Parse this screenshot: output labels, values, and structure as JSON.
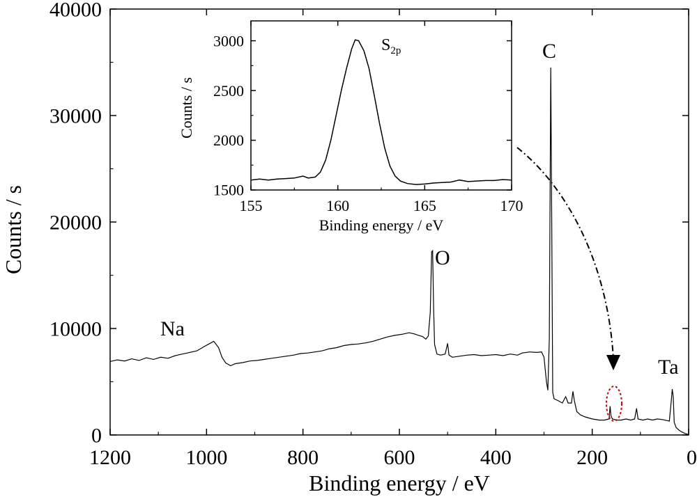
{
  "chart_data": [
    {
      "type": "line",
      "xlabel": "Binding energy / eV",
      "ylabel": "Counts / s",
      "xlim": [
        1200,
        0
      ],
      "ylim": [
        0,
        40000
      ],
      "x_reversed": true,
      "xticks": [
        1200,
        1000,
        800,
        600,
        400,
        200,
        0
      ],
      "yticks": [
        0,
        10000,
        20000,
        30000,
        40000
      ],
      "line_color": "#000000",
      "series": [
        {
          "points": [
            [
              1200,
              6900
            ],
            [
              1185,
              7050
            ],
            [
              1170,
              6950
            ],
            [
              1155,
              7150
            ],
            [
              1140,
              7000
            ],
            [
              1125,
              7250
            ],
            [
              1110,
              7100
            ],
            [
              1095,
              7300
            ],
            [
              1080,
              7200
            ],
            [
              1065,
              7450
            ],
            [
              1050,
              7600
            ],
            [
              1035,
              7750
            ],
            [
              1020,
              7900
            ],
            [
              1005,
              8300
            ],
            [
              995,
              8550
            ],
            [
              985,
              8800
            ],
            [
              975,
              8200
            ],
            [
              968,
              7300
            ],
            [
              960,
              6750
            ],
            [
              950,
              6500
            ],
            [
              940,
              6700
            ],
            [
              925,
              6800
            ],
            [
              910,
              6950
            ],
            [
              895,
              7000
            ],
            [
              880,
              7100
            ],
            [
              865,
              7200
            ],
            [
              850,
              7300
            ],
            [
              835,
              7400
            ],
            [
              820,
              7500
            ],
            [
              805,
              7650
            ],
            [
              790,
              7700
            ],
            [
              775,
              7800
            ],
            [
              760,
              7900
            ],
            [
              745,
              8100
            ],
            [
              730,
              8200
            ],
            [
              715,
              8400
            ],
            [
              700,
              8500
            ],
            [
              685,
              8550
            ],
            [
              670,
              8650
            ],
            [
              655,
              8800
            ],
            [
              640,
              9000
            ],
            [
              625,
              9200
            ],
            [
              610,
              9350
            ],
            [
              595,
              9450
            ],
            [
              580,
              9600
            ],
            [
              570,
              9500
            ],
            [
              560,
              9350
            ],
            [
              552,
              9250
            ],
            [
              545,
              9000
            ],
            [
              540,
              9300
            ],
            [
              536,
              11500
            ],
            [
              533,
              17200
            ],
            [
              531,
              17300
            ],
            [
              529,
              12000
            ],
            [
              527,
              8500
            ],
            [
              522,
              7600
            ],
            [
              515,
              7500
            ],
            [
              505,
              7600
            ],
            [
              500,
              8600
            ],
            [
              497,
              7500
            ],
            [
              490,
              7300
            ],
            [
              475,
              7400
            ],
            [
              460,
              7500
            ],
            [
              445,
              7550
            ],
            [
              430,
              7450
            ],
            [
              415,
              7500
            ],
            [
              400,
              7550
            ],
            [
              385,
              7450
            ],
            [
              370,
              7600
            ],
            [
              355,
              7500
            ],
            [
              345,
              7700
            ],
            [
              330,
              7800
            ],
            [
              315,
              7750
            ],
            [
              305,
              7800
            ],
            [
              300,
              7300
            ],
            [
              295,
              5000
            ],
            [
              292,
              4200
            ],
            [
              289,
              9000
            ],
            [
              286,
              34500
            ],
            [
              284,
              20000
            ],
            [
              282,
              4000
            ],
            [
              279,
              3400
            ],
            [
              270,
              3200
            ],
            [
              262,
              3000
            ],
            [
              255,
              3600
            ],
            [
              250,
              3000
            ],
            [
              243,
              3000
            ],
            [
              240,
              4100
            ],
            [
              237,
              3200
            ],
            [
              232,
              2200
            ],
            [
              225,
              1900
            ],
            [
              215,
              1700
            ],
            [
              200,
              1500
            ],
            [
              185,
              1400
            ],
            [
              175,
              1400
            ],
            [
              165,
              1500
            ],
            [
              163,
              2700
            ],
            [
              161,
              1800
            ],
            [
              158,
              1500
            ],
            [
              150,
              1400
            ],
            [
              140,
              1400
            ],
            [
              130,
              1500
            ],
            [
              120,
              1400
            ],
            [
              112,
              1500
            ],
            [
              108,
              2500
            ],
            [
              105,
              1500
            ],
            [
              95,
              1400
            ],
            [
              85,
              1500
            ],
            [
              75,
              1400
            ],
            [
              65,
              1500
            ],
            [
              55,
              1450
            ],
            [
              45,
              1350
            ],
            [
              40,
              1300
            ],
            [
              36,
              3200
            ],
            [
              34,
              4300
            ],
            [
              32,
              3600
            ],
            [
              30,
              1200
            ],
            [
              26,
              700
            ],
            [
              20,
              450
            ],
            [
              14,
              280
            ],
            [
              8,
              150
            ],
            [
              3,
              80
            ],
            [
              0,
              50
            ]
          ]
        }
      ],
      "annotations": [
        "Na",
        "O",
        "C",
        "Ta"
      ]
    },
    {
      "type": "line",
      "xlabel": "Binding energy / eV",
      "ylabel": "Counts / s",
      "xlim": [
        155,
        170
      ],
      "ylim": [
        1500,
        3200
      ],
      "xticks": [
        155,
        160,
        165,
        170
      ],
      "yticks": [
        1500,
        2000,
        2500,
        3000
      ],
      "line_color": "#000000",
      "annotation": {
        "base": "S",
        "subscript": "2p"
      },
      "series": [
        {
          "points": [
            [
              155,
              1600
            ],
            [
              155.5,
              1610
            ],
            [
              156,
              1600
            ],
            [
              156.5,
              1610
            ],
            [
              157,
              1615
            ],
            [
              157.5,
              1620
            ],
            [
              158,
              1640
            ],
            [
              158.3,
              1620
            ],
            [
              158.7,
              1630
            ],
            [
              159,
              1680
            ],
            [
              159.3,
              1800
            ],
            [
              159.6,
              2000
            ],
            [
              159.9,
              2250
            ],
            [
              160.2,
              2500
            ],
            [
              160.5,
              2720
            ],
            [
              160.8,
              2920
            ],
            [
              161,
              3010
            ],
            [
              161.2,
              3000
            ],
            [
              161.5,
              2900
            ],
            [
              161.8,
              2720
            ],
            [
              162.1,
              2450
            ],
            [
              162.4,
              2170
            ],
            [
              162.7,
              1920
            ],
            [
              163,
              1740
            ],
            [
              163.3,
              1640
            ],
            [
              163.6,
              1590
            ],
            [
              164,
              1565
            ],
            [
              164.5,
              1555
            ],
            [
              165,
              1560
            ],
            [
              165.5,
              1570
            ],
            [
              166,
              1575
            ],
            [
              166.5,
              1580
            ],
            [
              167,
              1600
            ],
            [
              167.5,
              1585
            ],
            [
              168,
              1590
            ],
            [
              168.5,
              1595
            ],
            [
              169,
              1595
            ],
            [
              169.5,
              1605
            ],
            [
              170,
              1600
            ]
          ]
        }
      ]
    }
  ],
  "colors": {
    "highlight_ellipse": "#cc0000",
    "line": "#000000",
    "background": "#ffffff"
  }
}
